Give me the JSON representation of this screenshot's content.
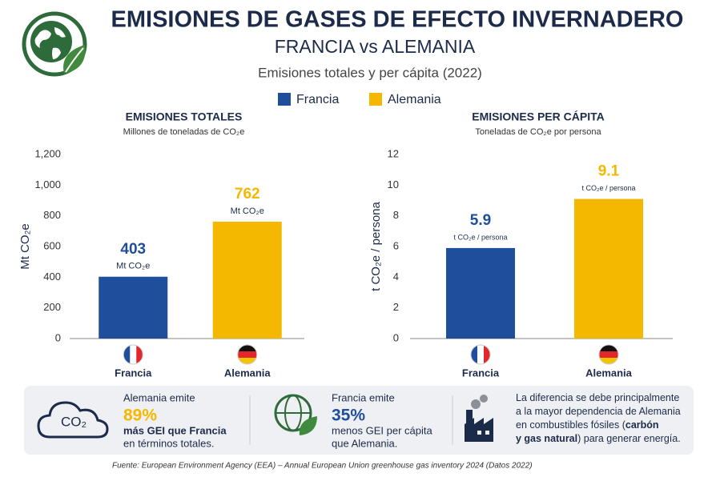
{
  "header": {
    "title": "EMISIONES DE GASES DE EFECTO INVERNADERO",
    "subtitle": "FRANCIA vs ALEMANIA",
    "description": "Emisiones totales y per cápita (2022)"
  },
  "chart_data": [
    {
      "type": "bar",
      "title": "EMISIONES TOTALES",
      "subtitle": "Millones de toneladas de CO₂e",
      "ylabel": "Mt CO₂e",
      "categories": [
        "Francia",
        "Alemania"
      ],
      "values": [
        403,
        762
      ],
      "colors": [
        "#1f4e9c",
        "#f5b800"
      ],
      "unit_label": "Mt CO₂e",
      "ylim": [
        0,
        1200
      ],
      "yticks": [
        0,
        200,
        400,
        600,
        800,
        {
          "value": 1000,
          "label": "1,000"
        },
        {
          "value": 1200,
          "label": "1,200"
        }
      ]
    },
    {
      "type": "bar",
      "title": "EMISIONES PER CÁPITA",
      "subtitle": "Toneladas de CO₂e por persona",
      "ylabel": "t CO₂e / persona",
      "categories": [
        "Francia",
        "Alemania"
      ],
      "values": [
        5.9,
        9.1
      ],
      "colors": [
        "#1f4e9c",
        "#f5b800"
      ],
      "unit_label": "t CO₂e / persona",
      "ylim": [
        0,
        12
      ],
      "yticks": [
        0,
        2,
        4,
        6,
        8,
        10,
        12
      ]
    }
  ],
  "highlights": [
    {
      "icon_text": "CO₂",
      "intro": "Alemania emite",
      "figure": "89%",
      "lines": [
        "más GEI que Francia",
        "en términos totales."
      ]
    },
    {
      "intro": "Francia emite",
      "figure": "35%",
      "lines": [
        "menos GEI per cápita",
        "que Alemania."
      ]
    },
    {
      "paragraph": [
        [
          {
            "text": "La diferencia se debe principalmente",
            "bold": false
          }
        ],
        [
          {
            "text": "a la mayor dependencia de Alemania",
            "bold": false
          }
        ],
        [
          {
            "text": "en combustibles fósiles (",
            "bold": false
          },
          {
            "text": "carbón",
            "bold": true
          }
        ],
        [
          {
            "text": "y gas natural",
            "bold": true
          },
          {
            "text": ") para generar energía.",
            "bold": false
          }
        ]
      ]
    }
  ],
  "source": "Fuente:  European Environment Agency (EEA) – Annual European Union greenhouse gas inventory 2024 (Datos 2022)"
}
